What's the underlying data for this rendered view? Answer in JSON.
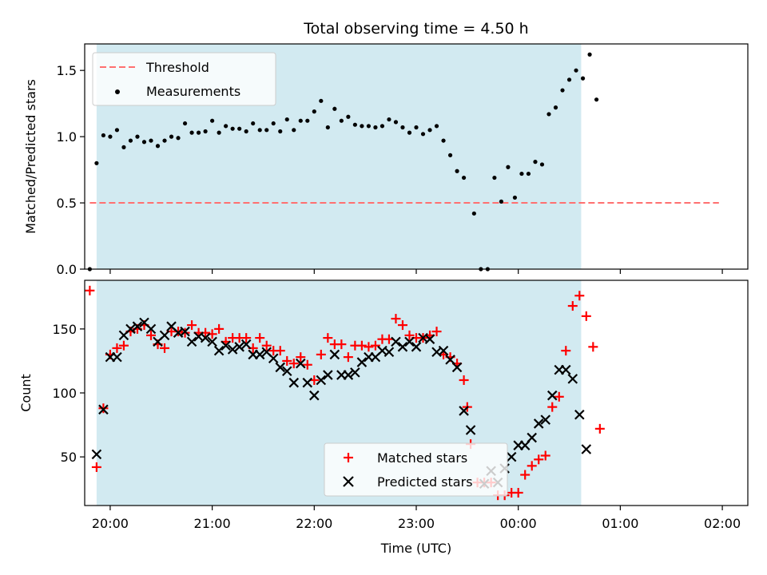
{
  "chart_data": [
    {
      "type": "scatter",
      "title": "Total observing time = 4.50 h",
      "ylabel": "Matched/Predicted stars",
      "xlabel": "",
      "xlim": [
        "19:45",
        "02:15"
      ],
      "ylim": [
        0,
        1.7
      ],
      "y_ticks": [
        "0.0",
        "0.5",
        "1.0",
        "1.5"
      ],
      "shaded_interval": [
        "19:52",
        "00:37"
      ],
      "shade_color": "#add8e6",
      "threshold": {
        "name": "Threshold",
        "value": 0.5,
        "x_range": [
          "19:48",
          "01:58"
        ],
        "color": "#ff7070"
      },
      "series": [
        {
          "name": "Measurements",
          "color": "#000000",
          "marker": "dot",
          "points": [
            [
              "19:48",
              0.0
            ],
            [
              "19:52",
              0.8
            ],
            [
              "19:56",
              1.01
            ],
            [
              "20:00",
              1.0
            ],
            [
              "20:04",
              1.05
            ],
            [
              "20:08",
              0.92
            ],
            [
              "20:12",
              0.97
            ],
            [
              "20:16",
              1.0
            ],
            [
              "20:20",
              0.96
            ],
            [
              "20:24",
              0.97
            ],
            [
              "20:28",
              0.93
            ],
            [
              "20:32",
              0.97
            ],
            [
              "20:36",
              1.0
            ],
            [
              "20:40",
              0.99
            ],
            [
              "20:44",
              1.1
            ],
            [
              "20:48",
              1.03
            ],
            [
              "20:52",
              1.03
            ],
            [
              "20:56",
              1.04
            ],
            [
              "21:00",
              1.12
            ],
            [
              "21:04",
              1.03
            ],
            [
              "21:08",
              1.08
            ],
            [
              "21:12",
              1.06
            ],
            [
              "21:16",
              1.06
            ],
            [
              "21:20",
              1.04
            ],
            [
              "21:24",
              1.1
            ],
            [
              "21:28",
              1.05
            ],
            [
              "21:32",
              1.05
            ],
            [
              "21:36",
              1.1
            ],
            [
              "21:40",
              1.04
            ],
            [
              "21:44",
              1.13
            ],
            [
              "21:48",
              1.05
            ],
            [
              "21:52",
              1.12
            ],
            [
              "21:56",
              1.12
            ],
            [
              "22:00",
              1.19
            ],
            [
              "22:04",
              1.27
            ],
            [
              "22:08",
              1.07
            ],
            [
              "22:12",
              1.21
            ],
            [
              "22:16",
              1.12
            ],
            [
              "22:20",
              1.15
            ],
            [
              "22:24",
              1.09
            ],
            [
              "22:28",
              1.08
            ],
            [
              "22:32",
              1.08
            ],
            [
              "22:36",
              1.07
            ],
            [
              "22:40",
              1.08
            ],
            [
              "22:44",
              1.13
            ],
            [
              "22:48",
              1.11
            ],
            [
              "22:52",
              1.07
            ],
            [
              "22:56",
              1.03
            ],
            [
              "23:00",
              1.07
            ],
            [
              "23:04",
              1.02
            ],
            [
              "23:08",
              1.05
            ],
            [
              "23:12",
              1.08
            ],
            [
              "23:16",
              0.97
            ],
            [
              "23:20",
              0.86
            ],
            [
              "23:24",
              0.74
            ],
            [
              "23:28",
              0.69
            ],
            [
              "23:34",
              0.42
            ],
            [
              "23:38",
              0.0
            ],
            [
              "23:42",
              0.0
            ],
            [
              "23:46",
              0.69
            ],
            [
              "23:50",
              0.51
            ],
            [
              "23:54",
              0.77
            ],
            [
              "23:58",
              0.54
            ],
            [
              "00:02",
              0.72
            ],
            [
              "00:06",
              0.72
            ],
            [
              "00:10",
              0.81
            ],
            [
              "00:14",
              0.79
            ],
            [
              "00:18",
              1.17
            ],
            [
              "00:22",
              1.22
            ],
            [
              "00:26",
              1.35
            ],
            [
              "00:30",
              1.43
            ],
            [
              "00:34",
              1.5
            ],
            [
              "00:38",
              1.44
            ],
            [
              "00:42",
              1.62
            ],
            [
              "00:46",
              1.28
            ]
          ]
        }
      ],
      "legend_position": "upper left"
    },
    {
      "type": "scatter",
      "title": "",
      "ylabel": "Count",
      "xlabel": "Time (UTC)",
      "xlim": [
        "19:45",
        "02:15"
      ],
      "ylim": [
        12,
        188
      ],
      "y_ticks": [
        "50",
        "100",
        "150"
      ],
      "x_ticks": [
        "20:00",
        "21:00",
        "22:00",
        "23:00",
        "00:00",
        "01:00",
        "02:00"
      ],
      "shaded_interval": [
        "19:52",
        "00:37"
      ],
      "shade_color": "#add8e6",
      "series": [
        {
          "name": "Matched stars",
          "color": "#ff0000",
          "marker": "plus",
          "points": [
            [
              "19:48",
              180
            ],
            [
              "19:52",
              42
            ],
            [
              "19:56",
              88
            ],
            [
              "20:00",
              130
            ],
            [
              "20:04",
              135
            ],
            [
              "20:08",
              137
            ],
            [
              "20:12",
              148
            ],
            [
              "20:16",
              150
            ],
            [
              "20:20",
              153
            ],
            [
              "20:24",
              145
            ],
            [
              "20:28",
              138
            ],
            [
              "20:32",
              135
            ],
            [
              "20:36",
              148
            ],
            [
              "20:40",
              148
            ],
            [
              "20:44",
              147
            ],
            [
              "20:48",
              153
            ],
            [
              "20:52",
              147
            ],
            [
              "20:56",
              147
            ],
            [
              "21:00",
              146
            ],
            [
              "21:04",
              150
            ],
            [
              "21:08",
              140
            ],
            [
              "21:12",
              143
            ],
            [
              "21:16",
              143
            ],
            [
              "21:20",
              143
            ],
            [
              "21:24",
              135
            ],
            [
              "21:28",
              143
            ],
            [
              "21:32",
              137
            ],
            [
              "21:36",
              133
            ],
            [
              "21:40",
              133
            ],
            [
              "21:44",
              125
            ],
            [
              "21:48",
              123
            ],
            [
              "21:52",
              128
            ],
            [
              "21:56",
              122
            ],
            [
              "22:00",
              110
            ],
            [
              "22:04",
              130
            ],
            [
              "22:08",
              143
            ],
            [
              "22:12",
              138
            ],
            [
              "22:16",
              138
            ],
            [
              "22:20",
              128
            ],
            [
              "22:24",
              137
            ],
            [
              "22:28",
              137
            ],
            [
              "22:32",
              136
            ],
            [
              "22:36",
              137
            ],
            [
              "22:40",
              142
            ],
            [
              "22:44",
              142
            ],
            [
              "22:48",
              158
            ],
            [
              "22:52",
              153
            ],
            [
              "22:56",
              145
            ],
            [
              "23:00",
              143
            ],
            [
              "23:04",
              143
            ],
            [
              "23:08",
              145
            ],
            [
              "23:12",
              148
            ],
            [
              "23:16",
              130
            ],
            [
              "23:20",
              128
            ],
            [
              "23:24",
              123
            ],
            [
              "23:28",
              110
            ],
            [
              "23:30",
              89
            ],
            [
              "23:32",
              60
            ],
            [
              "23:36",
              30
            ],
            [
              "23:40",
              30
            ],
            [
              "23:44",
              30
            ],
            [
              "23:48",
              20
            ],
            [
              "23:52",
              20
            ],
            [
              "23:56",
              22
            ],
            [
              "00:00",
              22
            ],
            [
              "00:04",
              36
            ],
            [
              "00:08",
              43
            ],
            [
              "00:12",
              48
            ],
            [
              "00:16",
              51
            ],
            [
              "00:20",
              89
            ],
            [
              "00:24",
              97
            ],
            [
              "00:28",
              133
            ],
            [
              "00:32",
              168
            ],
            [
              "00:36",
              176
            ],
            [
              "00:40",
              160
            ],
            [
              "00:44",
              136
            ],
            [
              "00:48",
              72
            ]
          ]
        },
        {
          "name": "Predicted stars",
          "color": "#000000",
          "marker": "x",
          "points": [
            [
              "19:52",
              52
            ],
            [
              "19:56",
              87
            ],
            [
              "20:00",
              128
            ],
            [
              "20:04",
              128
            ],
            [
              "20:08",
              145
            ],
            [
              "20:12",
              150
            ],
            [
              "20:16",
              152
            ],
            [
              "20:20",
              155
            ],
            [
              "20:24",
              150
            ],
            [
              "20:28",
              140
            ],
            [
              "20:32",
              145
            ],
            [
              "20:36",
              152
            ],
            [
              "20:40",
              147
            ],
            [
              "20:44",
              148
            ],
            [
              "20:48",
              140
            ],
            [
              "20:52",
              144
            ],
            [
              "20:56",
              143
            ],
            [
              "21:00",
              140
            ],
            [
              "21:04",
              133
            ],
            [
              "21:08",
              137
            ],
            [
              "21:12",
              134
            ],
            [
              "21:16",
              136
            ],
            [
              "21:20",
              138
            ],
            [
              "21:24",
              130
            ],
            [
              "21:28",
              130
            ],
            [
              "21:32",
              132
            ],
            [
              "21:36",
              127
            ],
            [
              "21:40",
              120
            ],
            [
              "21:44",
              117
            ],
            [
              "21:48",
              108
            ],
            [
              "21:52",
              123
            ],
            [
              "21:56",
              108
            ],
            [
              "22:00",
              98
            ],
            [
              "22:04",
              110
            ],
            [
              "22:08",
              114
            ],
            [
              "22:12",
              130
            ],
            [
              "22:16",
              114
            ],
            [
              "22:20",
              114
            ],
            [
              "22:24",
              116
            ],
            [
              "22:28",
              124
            ],
            [
              "22:32",
              128
            ],
            [
              "22:36",
              128
            ],
            [
              "22:40",
              133
            ],
            [
              "22:44",
              132
            ],
            [
              "22:48",
              140
            ],
            [
              "22:52",
              136
            ],
            [
              "22:56",
              140
            ],
            [
              "23:00",
              136
            ],
            [
              "23:04",
              143
            ],
            [
              "23:08",
              142
            ],
            [
              "23:12",
              132
            ],
            [
              "23:16",
              133
            ],
            [
              "23:20",
              126
            ],
            [
              "23:24",
              120
            ],
            [
              "23:28",
              86
            ],
            [
              "23:32",
              71
            ],
            [
              "23:40",
              29
            ],
            [
              "23:44",
              39
            ],
            [
              "23:48",
              30
            ],
            [
              "23:52",
              41
            ],
            [
              "23:56",
              50
            ],
            [
              "00:00",
              59
            ],
            [
              "00:04",
              59
            ],
            [
              "00:08",
              65
            ],
            [
              "00:12",
              76
            ],
            [
              "00:16",
              79
            ],
            [
              "00:20",
              98
            ],
            [
              "00:24",
              118
            ],
            [
              "00:28",
              118
            ],
            [
              "00:32",
              111
            ],
            [
              "00:36",
              83
            ],
            [
              "00:40",
              56
            ]
          ]
        }
      ],
      "legend_position": "lower center"
    }
  ],
  "legend_top": {
    "threshold_label": "Threshold",
    "measurements_label": "Measurements"
  },
  "legend_bottom": {
    "matched_label": "Matched stars",
    "predicted_label": "Predicted stars"
  }
}
